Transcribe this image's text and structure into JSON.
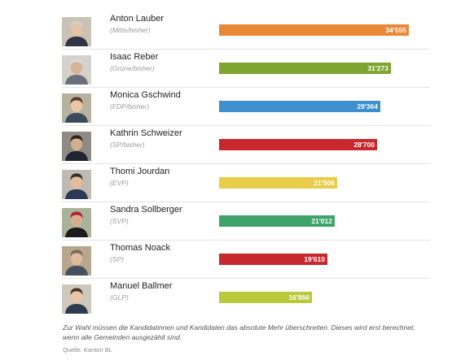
{
  "chart_data": {
    "type": "bar",
    "orientation": "horizontal",
    "categories": [
      "Anton Lauber",
      "Isaac Reber",
      "Monica Gschwind",
      "Kathrin Schweizer",
      "Thomi Jourdan",
      "Sandra Sollberger",
      "Thomas Noack",
      "Manuel Ballmer"
    ],
    "parties": [
      "(Mitte/bisher)",
      "(Grüne/bisher)",
      "(FDP/bisher)",
      "(SP/bisher)",
      "(EVP)",
      "(SVP)",
      "(SP)",
      "(GLP)"
    ],
    "values": [
      34555,
      31273,
      29364,
      28700,
      21506,
      21012,
      19610,
      16866
    ],
    "value_labels": [
      "34'555",
      "31'273",
      "29'364",
      "28'700",
      "21'506",
      "21'012",
      "19'610",
      "16'866"
    ],
    "colors": [
      "#e8893a",
      "#7ea52f",
      "#3e8fcd",
      "#c8282d",
      "#e8cc4a",
      "#3fa36a",
      "#c8282d",
      "#b9c93a"
    ],
    "xlim": [
      0,
      37000
    ],
    "grid": false,
    "legend": "none"
  },
  "footnote": "Zur Wahl müssen die Kandidatinnen und Kandidaten das absolute Mehr überschreiten. Dieses wird erst berechnet, wenn alle Gemeinden ausgezählt sind.",
  "source": "Quelle: Kanton BL"
}
